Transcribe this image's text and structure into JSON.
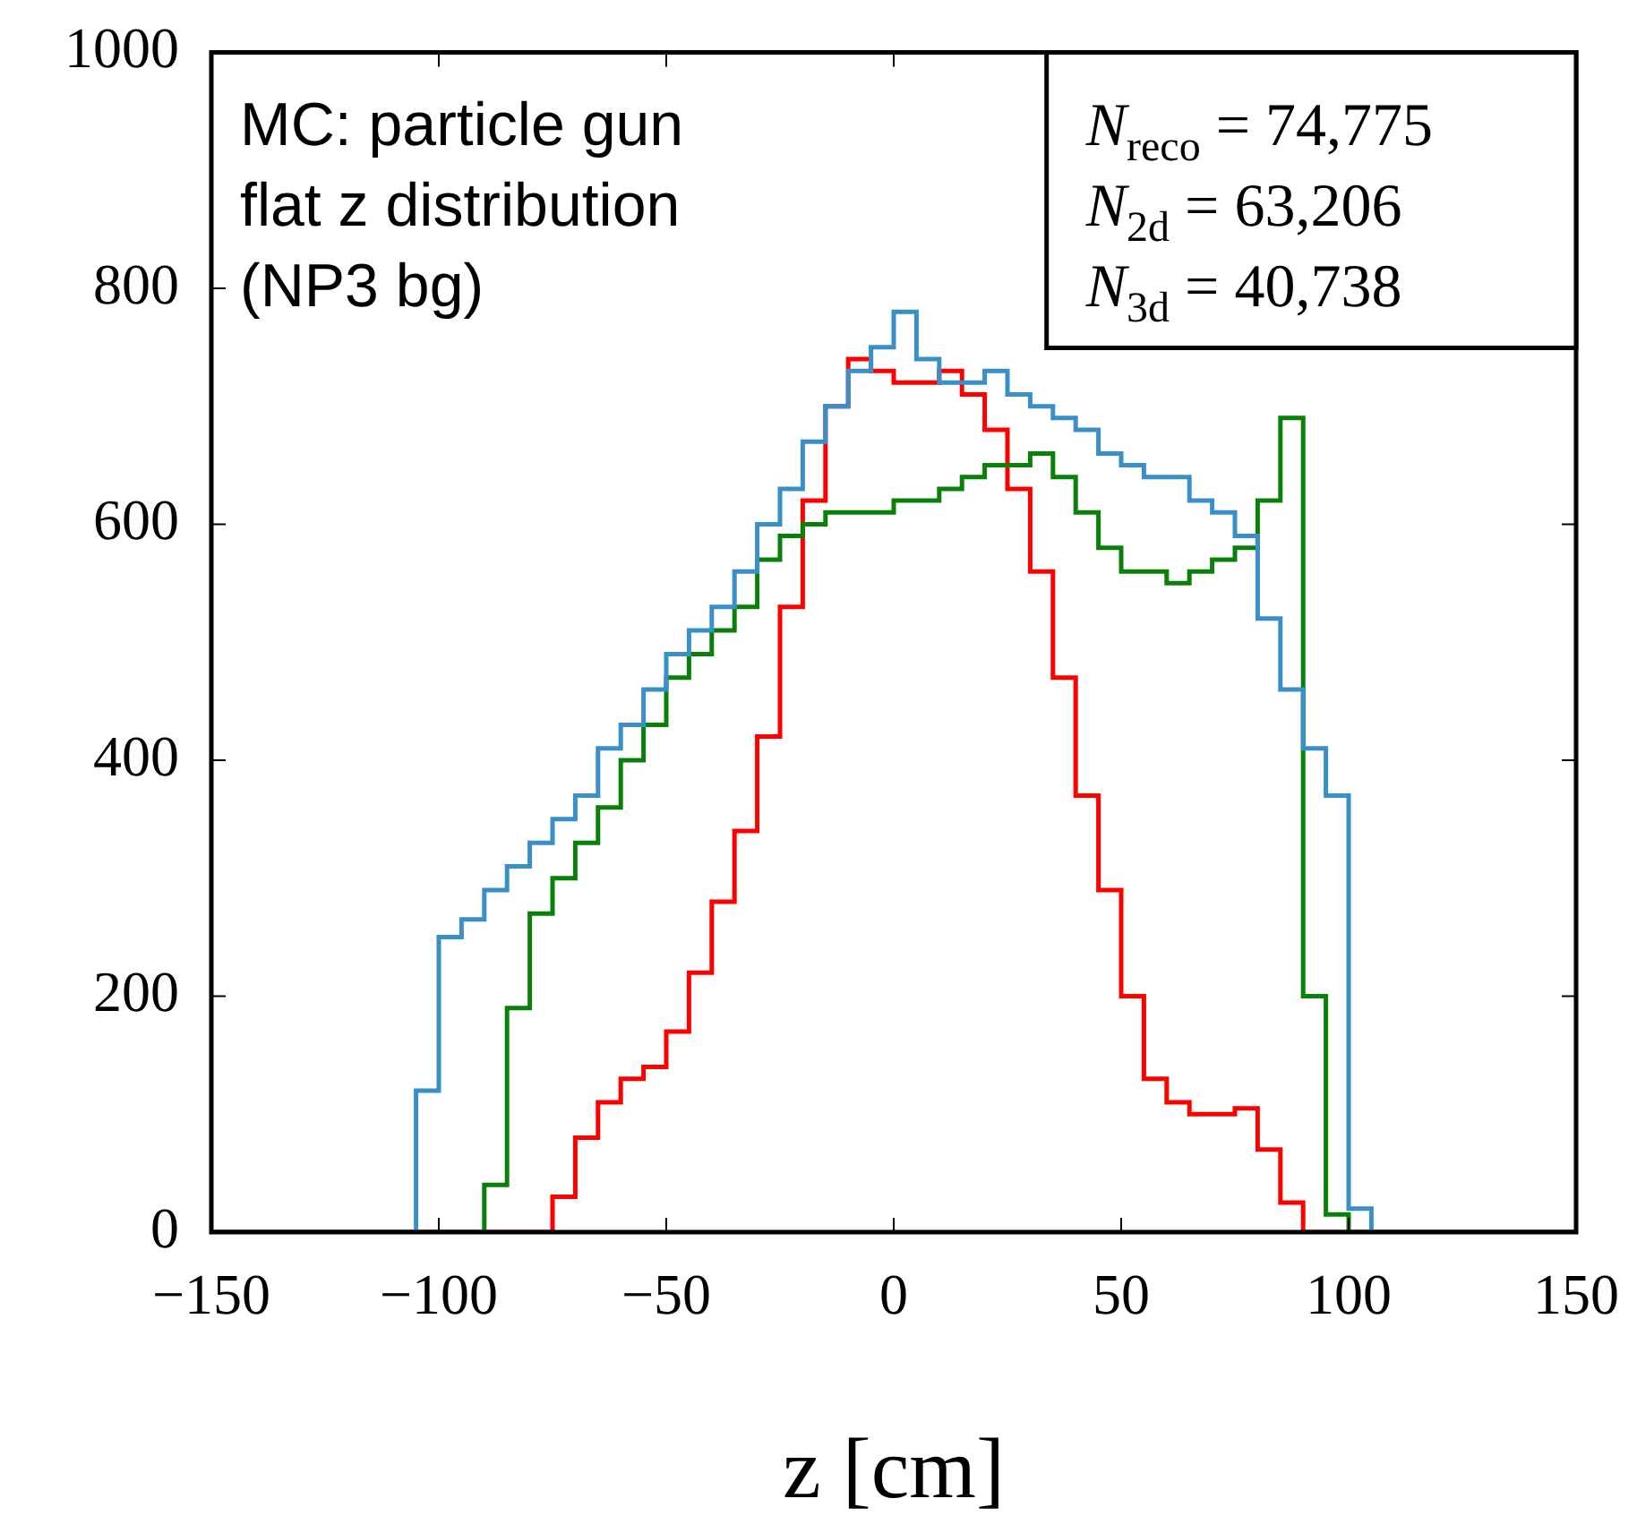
{
  "chart_data": {
    "type": "histogram",
    "xlabel": "z [cm]",
    "bins": [
      -150,
      -145,
      -140,
      -135,
      -130,
      -125,
      -120,
      -115,
      -110,
      -105,
      -100,
      -95,
      -90,
      -85,
      -80,
      -75,
      -70,
      -65,
      -60,
      -55,
      -50,
      -45,
      -40,
      -35,
      -30,
      -25,
      -20,
      -15,
      -10,
      -5,
      0,
      5,
      10,
      15,
      20,
      25,
      30,
      35,
      40,
      45,
      50,
      55,
      60,
      65,
      70,
      75,
      80,
      85,
      90,
      95,
      100,
      105,
      110,
      115,
      120,
      125,
      130,
      135,
      140,
      145,
      150
    ],
    "series": [
      {
        "color": "#3a8fc7",
        "values": [
          0,
          0,
          0,
          0,
          0,
          0,
          0,
          0,
          0,
          120,
          250,
          265,
          290,
          310,
          330,
          350,
          370,
          410,
          430,
          460,
          490,
          510,
          530,
          560,
          600,
          630,
          670,
          700,
          730,
          750,
          780,
          740,
          720,
          720,
          730,
          710,
          700,
          690,
          680,
          660,
          650,
          640,
          640,
          620,
          610,
          590,
          520,
          460,
          410,
          370,
          20,
          0,
          0,
          0,
          0,
          0,
          0,
          0,
          0,
          0
        ]
      },
      {
        "color": "#0a800a",
        "values": [
          0,
          0,
          0,
          0,
          0,
          0,
          0,
          0,
          0,
          0,
          0,
          0,
          40,
          190,
          270,
          300,
          330,
          360,
          400,
          430,
          470,
          490,
          510,
          530,
          570,
          590,
          600,
          610,
          610,
          610,
          620,
          620,
          630,
          640,
          650,
          650,
          660,
          640,
          610,
          580,
          560,
          560,
          550,
          560,
          570,
          580,
          620,
          690,
          200,
          15,
          0,
          0,
          0,
          0,
          0,
          0,
          0,
          0,
          0,
          0
        ]
      },
      {
        "color": "#ff0000",
        "values": [
          0,
          0,
          0,
          0,
          0,
          0,
          0,
          0,
          0,
          0,
          0,
          0,
          0,
          0,
          0,
          30,
          80,
          110,
          130,
          140,
          170,
          220,
          280,
          340,
          420,
          530,
          620,
          700,
          740,
          730,
          720,
          720,
          730,
          710,
          680,
          630,
          560,
          470,
          370,
          290,
          200,
          130,
          110,
          100,
          100,
          105,
          70,
          25,
          0,
          0,
          0,
          0,
          0,
          0,
          0,
          0,
          0,
          0,
          0,
          0
        ]
      }
    ],
    "xlim": [
      -150,
      150
    ],
    "xticks": [
      -150,
      -100,
      -50,
      0,
      50,
      100,
      150
    ],
    "ylim": [
      0,
      1000
    ],
    "yticks": [
      0,
      200,
      400,
      600,
      800,
      1000
    ],
    "annotations": [
      "MC: particle gun\nflat z distribution\n(NP3 bg)",
      "N$_{reco}$ = 74,775\nN$_{2d}$ = 63,206\nN$_{3d}$ = 40,738"
    ]
  }
}
